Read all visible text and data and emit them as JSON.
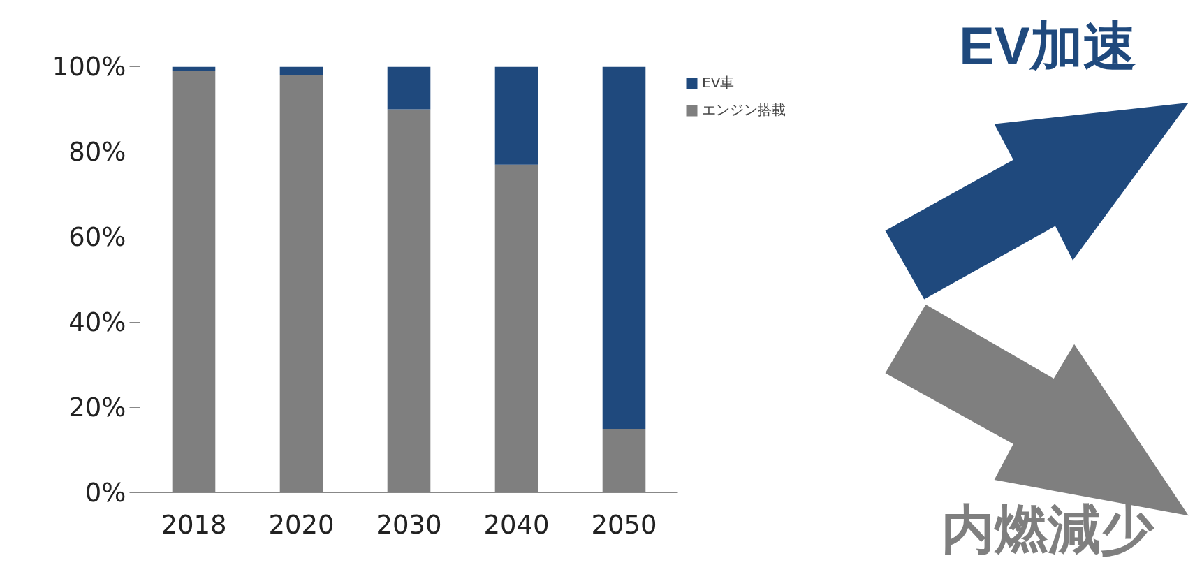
{
  "chart_data": {
    "type": "bar",
    "stacked": true,
    "categories": [
      "2018",
      "2020",
      "2030",
      "2040",
      "2050"
    ],
    "series": [
      {
        "name": "エンジン搭載",
        "color": "#7f7f7f",
        "values": [
          99,
          98,
          90,
          77,
          15
        ]
      },
      {
        "name": "EV車",
        "color": "#1f497d",
        "values": [
          1,
          2,
          10,
          23,
          85
        ]
      }
    ],
    "ylim": [
      0,
      100
    ],
    "yticks": [
      {
        "value": 0,
        "label": "0%"
      },
      {
        "value": 20,
        "label": "20%"
      },
      {
        "value": 40,
        "label": "40%"
      },
      {
        "value": 60,
        "label": "60%"
      },
      {
        "value": 80,
        "label": "80%"
      },
      {
        "value": 100,
        "label": "100%"
      }
    ],
    "legend": "right",
    "annotations": [
      "EV加速",
      "内燃減少"
    ]
  }
}
